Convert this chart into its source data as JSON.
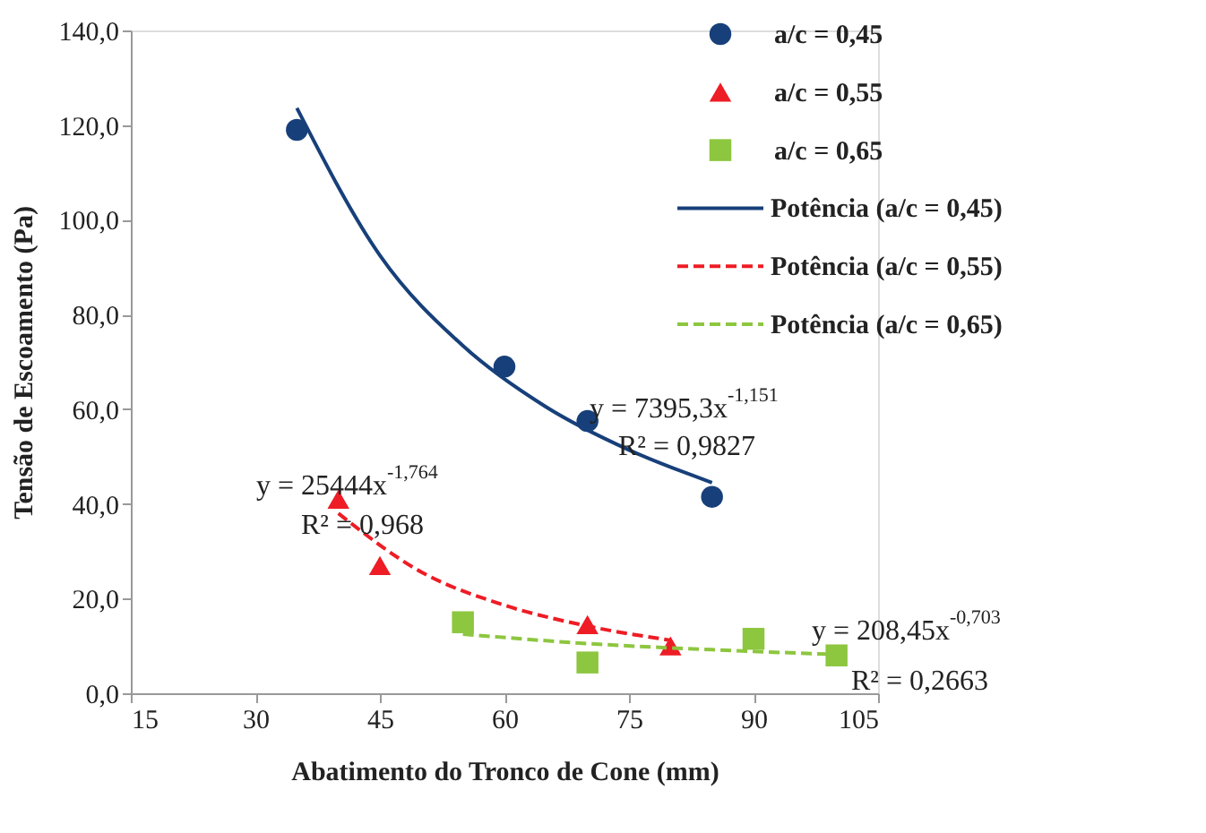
{
  "chart_data": {
    "type": "scatter",
    "xlabel": "Abatimento do Tronco de Cone (mm)",
    "ylabel": "Tensão de Escoamento (Pa)",
    "xlim": [
      15,
      105
    ],
    "xticks": [
      15,
      30,
      45,
      60,
      75,
      90,
      105
    ],
    "ylim": [
      0,
      140
    ],
    "yticks": [
      {
        "value": 0,
        "label": "0,0"
      },
      {
        "value": 20,
        "label": "20,0"
      },
      {
        "value": 40,
        "label": "40,0"
      },
      {
        "value": 60,
        "label": "60,0"
      },
      {
        "value": 80,
        "label": "80,0"
      },
      {
        "value": 100,
        "label": "100,0"
      },
      {
        "value": 120,
        "label": "120,0"
      },
      {
        "value": 140,
        "label": "140,0"
      }
    ],
    "grid": false,
    "legend": "top right",
    "series": [
      {
        "name": "a/c = 0,45",
        "marker": "circle",
        "color": "#17407a",
        "x": [
          35,
          60,
          70,
          85
        ],
        "values": [
          119,
          69,
          57.5,
          41.5
        ]
      },
      {
        "name": "a/c = 0,55",
        "marker": "triangle",
        "color": "#ee1c25",
        "x": [
          40,
          45,
          70,
          80
        ],
        "values": [
          41,
          27,
          14.5,
          10
        ]
      },
      {
        "name": "a/c = 0,65",
        "marker": "square",
        "color": "#8dc63f",
        "x": [
          55,
          70,
          90,
          100
        ],
        "values": [
          15,
          6.5,
          11.5,
          8
        ]
      },
      {
        "name": "Potência (a/c = 0,45)",
        "type": "line",
        "line_style": "solid",
        "color": "#17407a",
        "x": [
          35,
          45,
          55,
          65,
          75,
          85
        ],
        "values": [
          123.6,
          92.5,
          73.4,
          60.5,
          51.4,
          44.5
        ]
      },
      {
        "name": "Potência (a/c = 0,55)",
        "type": "line",
        "line_style": "dashed",
        "color": "#ee1c25",
        "x": [
          40,
          50,
          60,
          70,
          80
        ],
        "values": [
          38,
          25.6,
          18.6,
          14.2,
          11.2
        ]
      },
      {
        "name": "Potência (a/c = 0,65)",
        "type": "line",
        "line_style": "dashed",
        "color": "#8dc63f",
        "x": [
          55,
          70,
          85,
          100
        ],
        "values": [
          12.5,
          10.5,
          9.2,
          8.2
        ]
      }
    ],
    "annotations": [
      "y = 7395,3x$^{-1,151}$",
      "R² = 0,9827",
      "y = 25444x$^{-1,764}$",
      "R² = 0,968",
      "y = 208,45x$^{-0,703}$",
      "R² = 0,2663"
    ]
  }
}
